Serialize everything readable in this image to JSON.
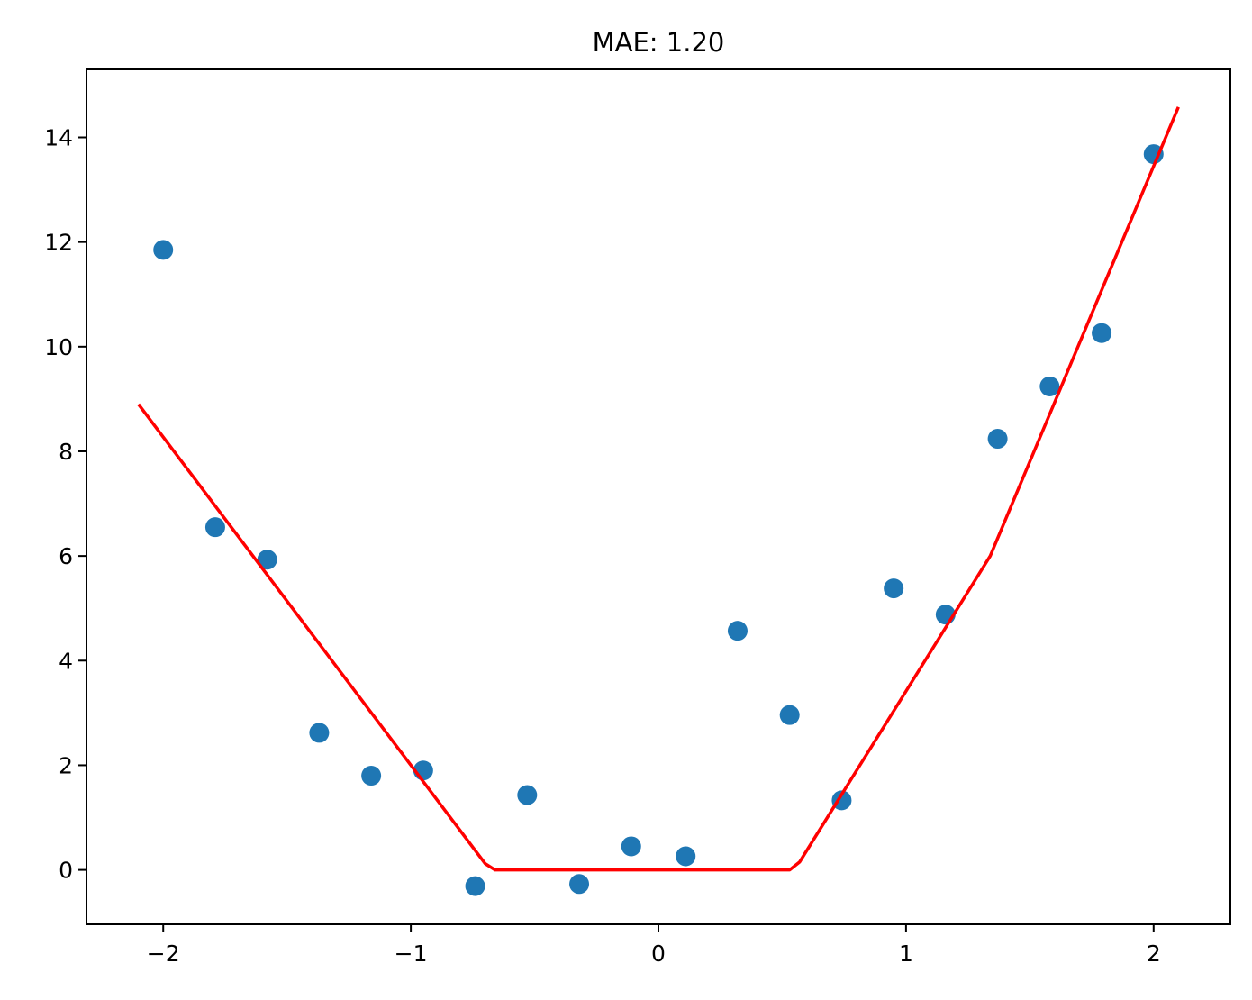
{
  "chart_data": {
    "type": "scatter",
    "title": "MAE: 1.20",
    "xlabel": "",
    "ylabel": "",
    "xlim": [
      -2.31,
      2.31
    ],
    "ylim": [
      -1.04,
      15.3
    ],
    "grid": false,
    "x_ticks": [
      -2,
      -1,
      0,
      1,
      2
    ],
    "x_tick_labels": [
      "−2",
      "−1",
      "0",
      "1",
      "2"
    ],
    "y_ticks": [
      0,
      2,
      4,
      6,
      8,
      10,
      12,
      14
    ],
    "y_tick_labels": [
      "0",
      "2",
      "4",
      "6",
      "8",
      "10",
      "12",
      "14"
    ],
    "colors": {
      "points": "#1f77b4",
      "line": "#ff0000"
    },
    "series": [
      {
        "kind": "scatter",
        "x": [
          -2.0,
          -1.79,
          -1.58,
          -1.37,
          -1.16,
          -0.95,
          -0.74,
          -0.53,
          -0.32,
          -0.11,
          0.11,
          0.32,
          0.53,
          0.74,
          0.95,
          1.16,
          1.37,
          1.58,
          1.79,
          2.0
        ],
        "y": [
          11.85,
          6.55,
          5.93,
          2.62,
          1.8,
          1.9,
          -0.31,
          1.43,
          -0.27,
          0.45,
          0.26,
          4.57,
          2.96,
          1.33,
          5.38,
          4.88,
          8.24,
          9.24,
          10.26,
          13.68
        ]
      },
      {
        "kind": "line",
        "x": [
          -2.1,
          -0.7,
          -0.66,
          0.53,
          0.57,
          1.34,
          2.1
        ],
        "y": [
          8.9,
          0.12,
          0.0,
          0.0,
          0.15,
          6.0,
          14.58
        ]
      }
    ]
  }
}
